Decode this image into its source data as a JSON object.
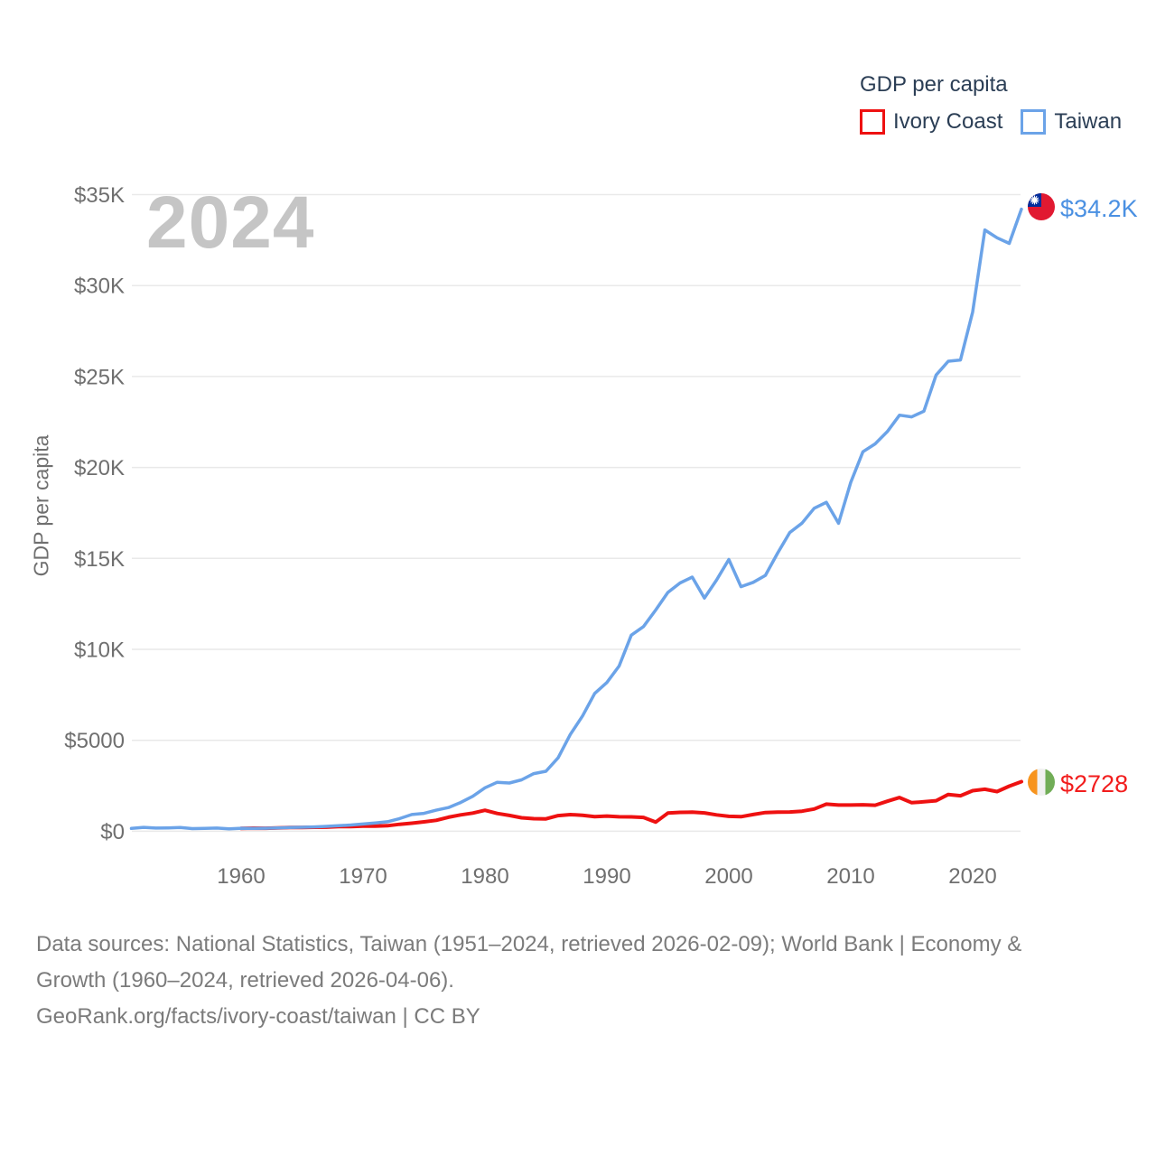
{
  "legend": {
    "title": "GDP per capita",
    "items": [
      {
        "label": "Ivory Coast",
        "color": "#ee1111"
      },
      {
        "label": "Taiwan",
        "color": "#6ba3e8"
      }
    ]
  },
  "watermark": "2024",
  "y_axis_title": "GDP per capita",
  "end_labels": {
    "taiwan": {
      "value_label": "$34.2K",
      "color": "#4a90e2"
    },
    "ivory_coast": {
      "value_label": "$2728",
      "color": "#f21d1d"
    }
  },
  "footer": {
    "line1": "Data sources: National Statistics, Taiwan (1951–2024, retrieved 2026-02-09); World Bank | Economy &",
    "line2": "Growth (1960–2024, retrieved 2026-04-06).",
    "line3": "GeoRank.org/facts/ivory-coast/taiwan | CC BY"
  },
  "chart_data": {
    "type": "line",
    "title": "GDP per capita",
    "xlabel": "",
    "ylabel": "GDP per capita",
    "xlim": [
      1951,
      2024
    ],
    "ylim": [
      0,
      35000
    ],
    "grid": true,
    "legend_position": "top-right",
    "x_ticks": [
      1960,
      1970,
      1980,
      1990,
      2000,
      2010,
      2020
    ],
    "y_ticks": [
      {
        "value": 0,
        "label": "$0"
      },
      {
        "value": 5000,
        "label": "$5000"
      },
      {
        "value": 10000,
        "label": "$10K"
      },
      {
        "value": 15000,
        "label": "$15K"
      },
      {
        "value": 20000,
        "label": "$20K"
      },
      {
        "value": 25000,
        "label": "$25K"
      },
      {
        "value": 30000,
        "label": "$30K"
      },
      {
        "value": 35000,
        "label": "$35K"
      }
    ],
    "series": [
      {
        "name": "Ivory Coast",
        "color": "#ee1111",
        "start_year": 1960,
        "end_value_label": "$2728",
        "values": [
          160,
          170,
          165,
          185,
          210,
          205,
          220,
          225,
          255,
          260,
          280,
          285,
          305,
          380,
          440,
          515,
          600,
          770,
          900,
          1000,
          1150,
          980,
          870,
          740,
          690,
          680,
          860,
          915,
          880,
          805,
          835,
          795,
          790,
          760,
          500,
          1000,
          1040,
          1050,
          1010,
          900,
          820,
          800,
          920,
          1030,
          1050,
          1060,
          1100,
          1220,
          1490,
          1440,
          1440,
          1455,
          1430,
          1650,
          1850,
          1570,
          1620,
          1680,
          2020,
          1950,
          2230,
          2310,
          2180,
          2480,
          2728
        ]
      },
      {
        "name": "Taiwan",
        "color": "#6ba3e8",
        "start_year": 1951,
        "end_value_label": "$34.2K",
        "values": [
          154,
          213,
          176,
          182,
          203,
          143,
          160,
          174,
          131,
          163,
          152,
          162,
          178,
          202,
          217,
          236,
          267,
          304,
          345,
          397,
          450,
          522,
          695,
          920,
          985,
          1158,
          1301,
          1577,
          1920,
          2389,
          2691,
          2653,
          2823,
          3167,
          3295,
          4036,
          5325,
          6338,
          7575,
          8178,
          9081,
          10778,
          11251,
          12160,
          13129,
          13650,
          13970,
          12820,
          13819,
          14941,
          13448,
          13686,
          14066,
          15290,
          16427,
          16934,
          17757,
          18081,
          16933,
          19181,
          20866,
          21295,
          21973,
          22874,
          22780,
          23091,
          25080,
          25838,
          25908,
          28549,
          33059,
          32625,
          32319,
          34200
        ]
      }
    ]
  }
}
